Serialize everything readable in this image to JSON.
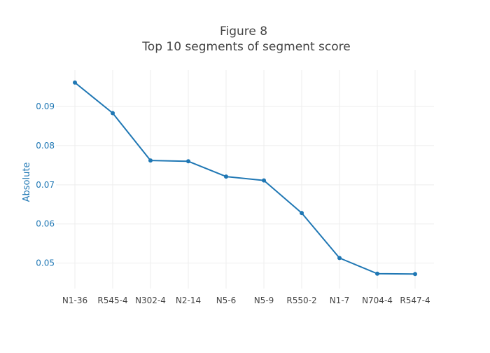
{
  "chart_data": {
    "type": "line",
    "title_line1": "Figure 8",
    "title_line2": "Top 10 segments of segment score",
    "xlabel": "",
    "ylabel": "Absolute",
    "categories": [
      "N1-36",
      "R545-4",
      "N302-4",
      "N2-14",
      "N5-6",
      "N5-9",
      "R550-2",
      "N1-7",
      "N704-4",
      "R547-4"
    ],
    "values": [
      0.0961,
      0.0883,
      0.0762,
      0.076,
      0.0721,
      0.0711,
      0.0628,
      0.0513,
      0.0473,
      0.0472
    ],
    "y_ticks": [
      0.05,
      0.06,
      0.07,
      0.08,
      0.09
    ],
    "y_tick_labels": [
      "0.05",
      "0.06",
      "0.07",
      "0.08",
      "0.09"
    ],
    "ylim": [
      0.0435,
      0.0993
    ],
    "grid": true,
    "line_color": "#1f77b4",
    "axis_label_color": "#1f77b4",
    "grid_color": "#eeeeee"
  }
}
